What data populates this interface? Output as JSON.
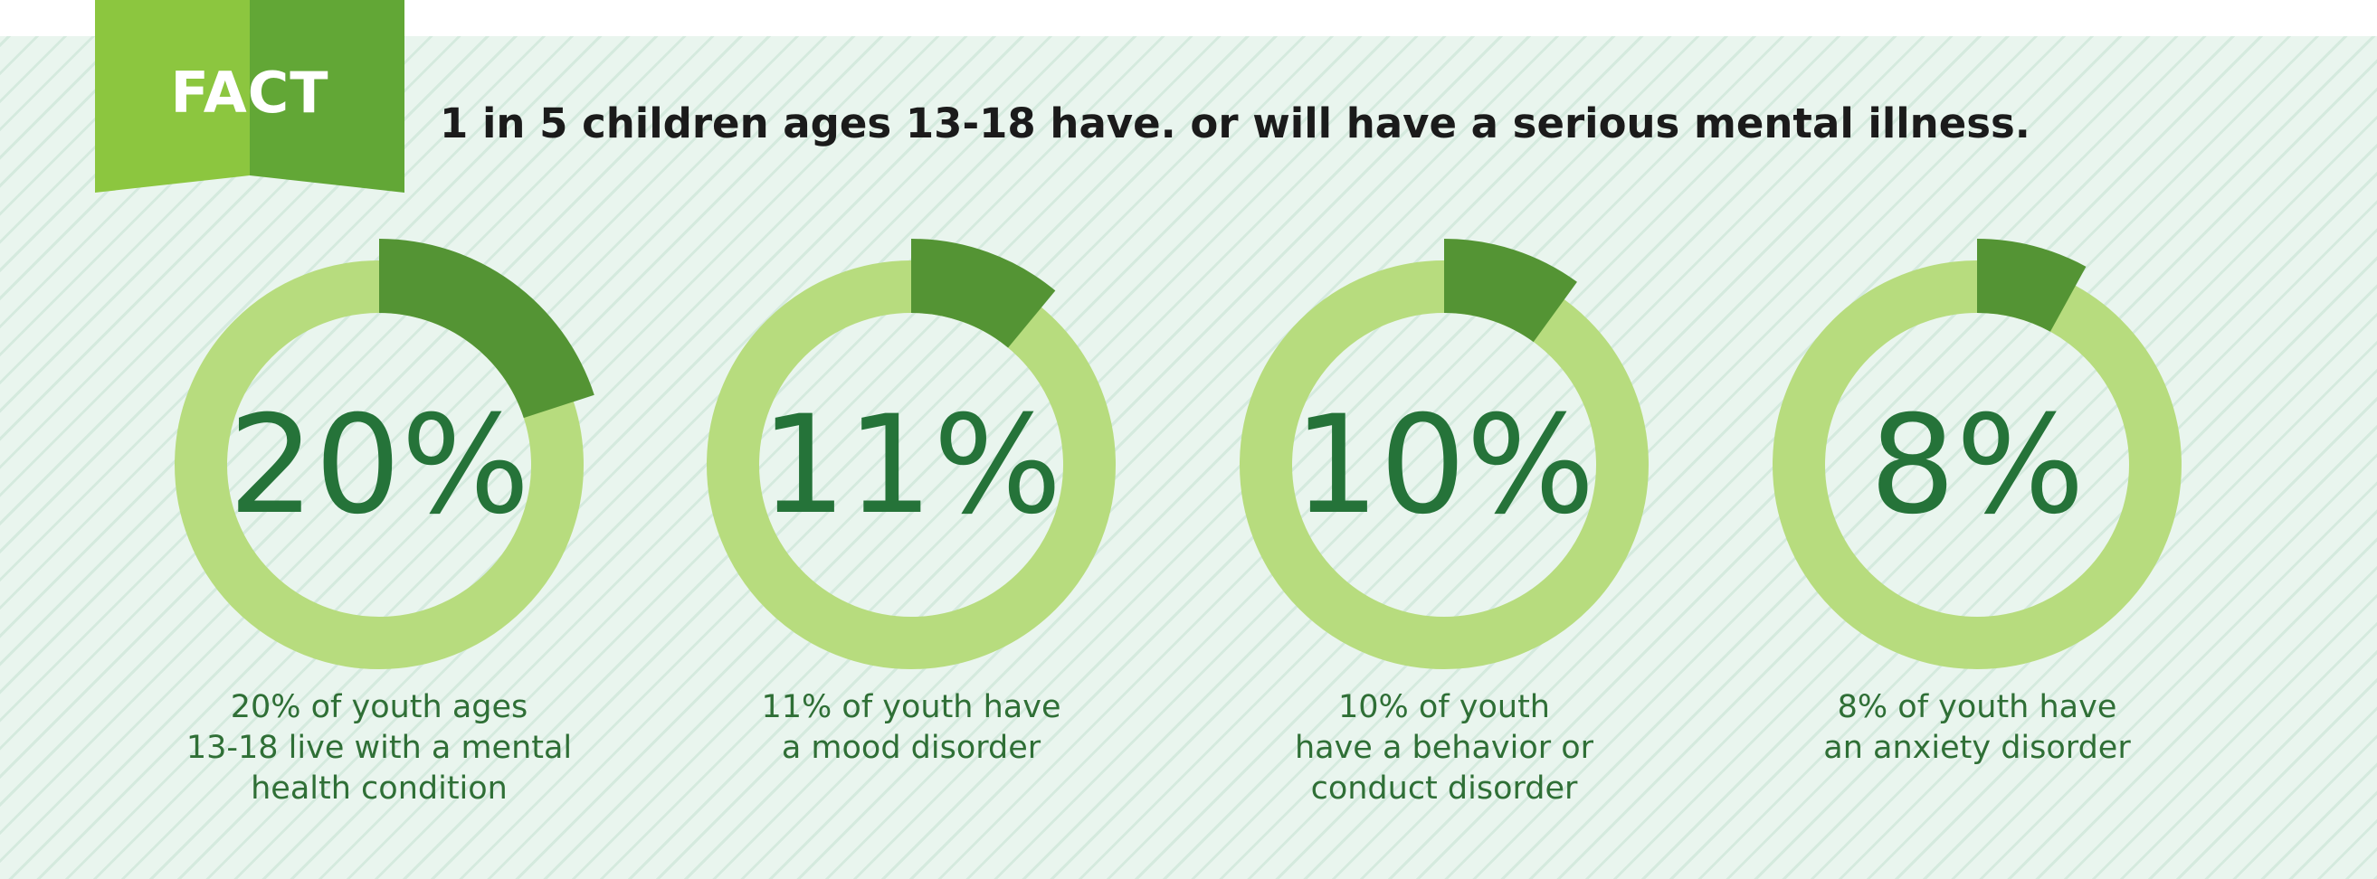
{
  "badge": {
    "label": "FACT"
  },
  "headline": "1 in 5 children ages 13-18 have. or will have a serious mental illness.",
  "colors": {
    "ring_base": "#b7dc7e",
    "ring_highlight": "#549434",
    "percent_text": "#257339",
    "caption_text": "#2f6f36",
    "badge_light": "#8cc63f",
    "badge_dark": "#62a736",
    "background": "#e9f5ee"
  },
  "chart_data": {
    "type": "pie",
    "title": "",
    "items": [
      {
        "label": "20%",
        "value": 20,
        "caption": [
          "20% of youth ages",
          "13-18 live with a mental",
          "health condition"
        ]
      },
      {
        "label": "11%",
        "value": 11,
        "caption": [
          "11% of youth have",
          "a mood disorder"
        ]
      },
      {
        "label": "10%",
        "value": 10,
        "caption": [
          "10% of youth",
          "have a behavior or",
          "conduct disorder"
        ]
      },
      {
        "label": "8%",
        "value": 8,
        "caption": [
          "8% of youth have",
          "an anxiety disorder"
        ]
      }
    ]
  }
}
